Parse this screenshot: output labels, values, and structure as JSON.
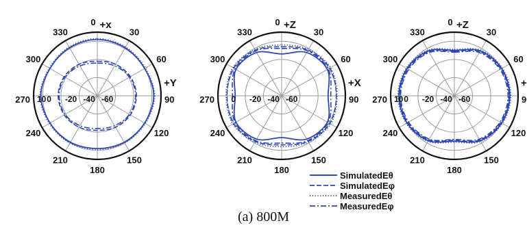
{
  "chart_data": [
    {
      "type": "polar",
      "title": "",
      "top_axis_label": "+x",
      "side_axis_label": "+Y",
      "angle_ticks": [
        "0",
        "30",
        "60",
        "90",
        "120",
        "150",
        "180",
        "210",
        "240",
        "270",
        "300",
        "330"
      ],
      "radial_ticks": [
        "10",
        "0",
        "-20",
        "-40",
        "-60"
      ],
      "rlim": [
        -60,
        10
      ],
      "angles": [
        0,
        30,
        60,
        90,
        120,
        150,
        180,
        210,
        240,
        270,
        300,
        330
      ],
      "series": [
        {
          "name": "SimulatedEθ",
          "values": [
            2,
            1,
            0,
            2,
            0,
            -1,
            -2,
            -1,
            0,
            2,
            0,
            1
          ]
        },
        {
          "name": "SimulatedEφ",
          "values": [
            -22,
            -20,
            -18,
            -17,
            -18,
            -20,
            -22,
            -20,
            -18,
            -17,
            -18,
            -20
          ]
        },
        {
          "name": "MeasuredEθ",
          "values": [
            3,
            2,
            1,
            3,
            1,
            0,
            -1,
            0,
            1,
            3,
            1,
            2
          ]
        },
        {
          "name": "MeasuredEφ",
          "values": [
            -24,
            -22,
            -19,
            -18,
            -19,
            -22,
            -24,
            -22,
            -19,
            -18,
            -19,
            -22
          ]
        }
      ]
    },
    {
      "type": "polar",
      "title": "",
      "top_axis_label": "+Z",
      "side_axis_label": "+X",
      "angle_ticks": [
        "0",
        "30",
        "60",
        "90",
        "120",
        "150",
        "180",
        "210",
        "240",
        "270",
        "300",
        "330"
      ],
      "radial_ticks": [
        "0",
        "-20",
        "-40",
        "-60"
      ],
      "rlim": [
        -60,
        10
      ],
      "angles": [
        0,
        30,
        60,
        90,
        120,
        150,
        180,
        210,
        240,
        270,
        300,
        330
      ],
      "series": [
        {
          "name": "SimulatedEθ",
          "values": [
            -14,
            -5,
            -2,
            -9,
            -2,
            -5,
            -14,
            -5,
            -2,
            -9,
            -2,
            -5
          ]
        },
        {
          "name": "SimulatedEφ",
          "values": [
            -6,
            -2,
            1,
            0,
            1,
            -2,
            -6,
            -2,
            1,
            0,
            1,
            -2
          ]
        },
        {
          "name": "MeasuredEθ",
          "values": [
            -4,
            -1,
            2,
            1,
            2,
            -1,
            -4,
            -1,
            2,
            1,
            2,
            -1
          ]
        },
        {
          "name": "MeasuredEφ",
          "values": [
            -8,
            -3,
            -1,
            -6,
            -1,
            -3,
            -8,
            -3,
            -1,
            -6,
            -1,
            -3
          ]
        }
      ]
    },
    {
      "type": "polar",
      "title": "",
      "top_axis_label": "+Z",
      "side_axis_label": "+Y",
      "angle_ticks": [
        "0",
        "30",
        "60",
        "90",
        "120",
        "150",
        "180",
        "210",
        "240",
        "270",
        "300",
        "330"
      ],
      "radial_ticks": [
        "10",
        "0",
        "-20",
        "-40",
        "-60"
      ],
      "rlim": [
        -60,
        10
      ],
      "angles": [
        0,
        30,
        60,
        90,
        120,
        150,
        180,
        210,
        240,
        270,
        300,
        330
      ],
      "series": [
        {
          "name": "SimulatedEθ",
          "values": [
            -10,
            -3,
            0,
            1,
            0,
            -3,
            -10,
            -3,
            0,
            1,
            0,
            -3
          ]
        },
        {
          "name": "SimulatedEφ",
          "values": [
            -11,
            -4,
            -1,
            0,
            -1,
            -4,
            -11,
            -4,
            -1,
            0,
            -1,
            -4
          ]
        },
        {
          "name": "MeasuredEθ",
          "values": [
            -9,
            -2,
            1,
            2,
            1,
            -2,
            -9,
            -2,
            1,
            2,
            1,
            -2
          ]
        },
        {
          "name": "MeasuredEφ",
          "values": [
            -12,
            -5,
            -2,
            -1,
            -2,
            -5,
            -12,
            -5,
            -2,
            -1,
            -2,
            -5
          ]
        }
      ]
    }
  ],
  "legend": [
    {
      "label": "SimulatedEθ",
      "style": "solid"
    },
    {
      "label": "SimulatedEφ",
      "style": "dashed"
    },
    {
      "label": "MeasuredEθ",
      "style": "dotted"
    },
    {
      "label": "MeasuredEφ",
      "style": "dashdot"
    }
  ],
  "caption": "(a) 800M",
  "colors": {
    "series": "#2d47b0",
    "grid": "#9a9a9a",
    "rim": "#111111"
  }
}
